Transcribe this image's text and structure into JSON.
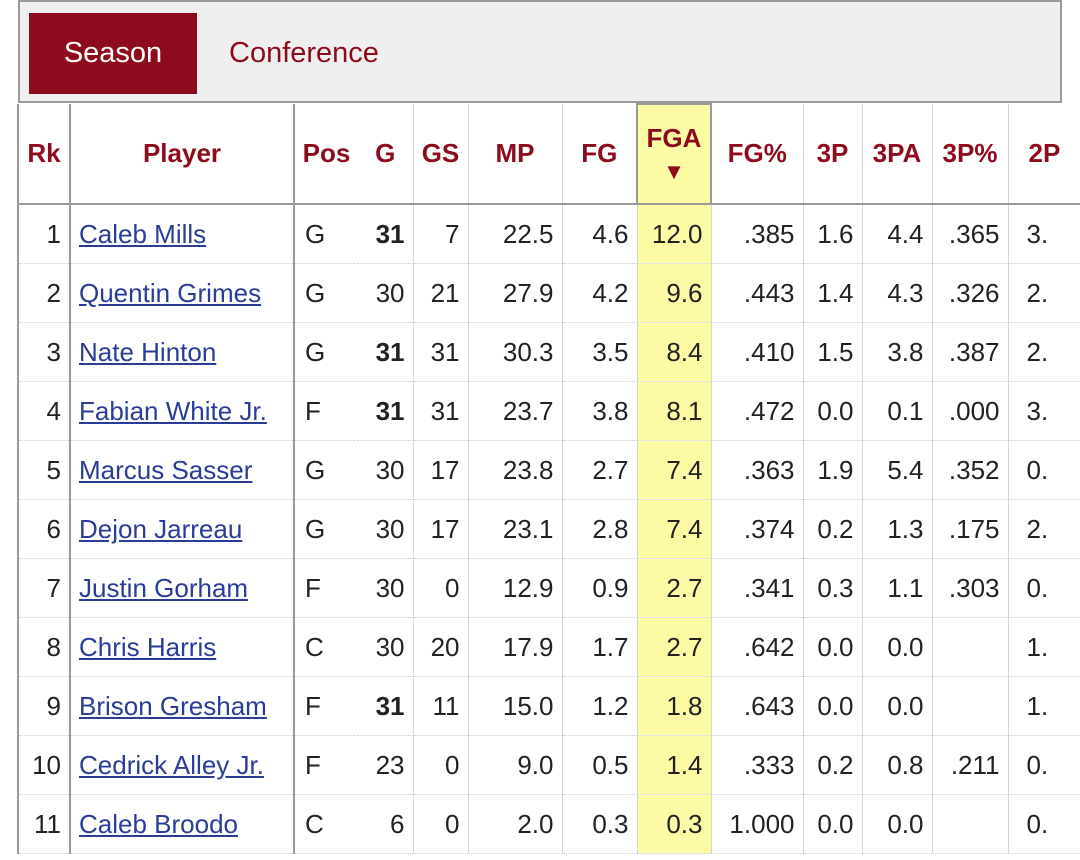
{
  "tabs": {
    "season": "Season",
    "conference": "Conference"
  },
  "table": {
    "headers": {
      "rk": "Rk",
      "player": "Player",
      "pos": "Pos",
      "g": "G",
      "gs": "GS",
      "mp": "MP",
      "fg": "FG",
      "fga": "FGA",
      "sort_indicator": "▼",
      "fg_pct": "FG%",
      "p3": "3P",
      "pa3": "3PA",
      "pct3": "3P%",
      "p2": "2P"
    },
    "rows": [
      {
        "rk": "1",
        "player": "Caleb Mills",
        "pos": "G",
        "g": "31",
        "g_bold": true,
        "gs": "7",
        "mp": "22.5",
        "fg": "4.6",
        "fga": "12.0",
        "fg_pct": ".385",
        "p3": "1.6",
        "pa3": "4.4",
        "pct3": ".365",
        "p2": "3."
      },
      {
        "rk": "2",
        "player": "Quentin Grimes",
        "pos": "G",
        "g": "30",
        "g_bold": false,
        "gs": "21",
        "mp": "27.9",
        "fg": "4.2",
        "fga": "9.6",
        "fg_pct": ".443",
        "p3": "1.4",
        "pa3": "4.3",
        "pct3": ".326",
        "p2": "2."
      },
      {
        "rk": "3",
        "player": "Nate Hinton",
        "pos": "G",
        "g": "31",
        "g_bold": true,
        "gs": "31",
        "mp": "30.3",
        "fg": "3.5",
        "fga": "8.4",
        "fg_pct": ".410",
        "p3": "1.5",
        "pa3": "3.8",
        "pct3": ".387",
        "p2": "2."
      },
      {
        "rk": "4",
        "player": "Fabian White Jr.",
        "pos": "F",
        "g": "31",
        "g_bold": true,
        "gs": "31",
        "mp": "23.7",
        "fg": "3.8",
        "fga": "8.1",
        "fg_pct": ".472",
        "p3": "0.0",
        "pa3": "0.1",
        "pct3": ".000",
        "p2": "3."
      },
      {
        "rk": "5",
        "player": "Marcus Sasser",
        "pos": "G",
        "g": "30",
        "g_bold": false,
        "gs": "17",
        "mp": "23.8",
        "fg": "2.7",
        "fga": "7.4",
        "fg_pct": ".363",
        "p3": "1.9",
        "pa3": "5.4",
        "pct3": ".352",
        "p2": "0."
      },
      {
        "rk": "6",
        "player": "Dejon Jarreau",
        "pos": "G",
        "g": "30",
        "g_bold": false,
        "gs": "17",
        "mp": "23.1",
        "fg": "2.8",
        "fga": "7.4",
        "fg_pct": ".374",
        "p3": "0.2",
        "pa3": "1.3",
        "pct3": ".175",
        "p2": "2."
      },
      {
        "rk": "7",
        "player": "Justin Gorham",
        "pos": "F",
        "g": "30",
        "g_bold": false,
        "gs": "0",
        "mp": "12.9",
        "fg": "0.9",
        "fga": "2.7",
        "fg_pct": ".341",
        "p3": "0.3",
        "pa3": "1.1",
        "pct3": ".303",
        "p2": "0."
      },
      {
        "rk": "8",
        "player": "Chris Harris",
        "pos": "C",
        "g": "30",
        "g_bold": false,
        "gs": "20",
        "mp": "17.9",
        "fg": "1.7",
        "fga": "2.7",
        "fg_pct": ".642",
        "p3": "0.0",
        "pa3": "0.0",
        "pct3": "",
        "p2": "1."
      },
      {
        "rk": "9",
        "player": "Brison Gresham",
        "pos": "F",
        "g": "31",
        "g_bold": true,
        "gs": "11",
        "mp": "15.0",
        "fg": "1.2",
        "fga": "1.8",
        "fg_pct": ".643",
        "p3": "0.0",
        "pa3": "0.0",
        "pct3": "",
        "p2": "1."
      },
      {
        "rk": "10",
        "player": "Cedrick Alley Jr.",
        "pos": "F",
        "g": "23",
        "g_bold": false,
        "gs": "0",
        "mp": "9.0",
        "fg": "0.5",
        "fga": "1.4",
        "fg_pct": ".333",
        "p3": "0.2",
        "pa3": "0.8",
        "pct3": ".211",
        "p2": "0."
      },
      {
        "rk": "11",
        "player": "Caleb Broodo",
        "pos": "C",
        "g": "6",
        "g_bold": false,
        "gs": "0",
        "mp": "2.0",
        "fg": "0.3",
        "fga": "0.3",
        "fg_pct": "1.000",
        "p3": "0.0",
        "pa3": "0.0",
        "pct3": "",
        "p2": "0."
      }
    ]
  },
  "colors": {
    "accent": "#8d0b1c",
    "link": "#2a3c98",
    "sorted_column": "#fdfaa6",
    "tab_bar": "#efefef"
  }
}
